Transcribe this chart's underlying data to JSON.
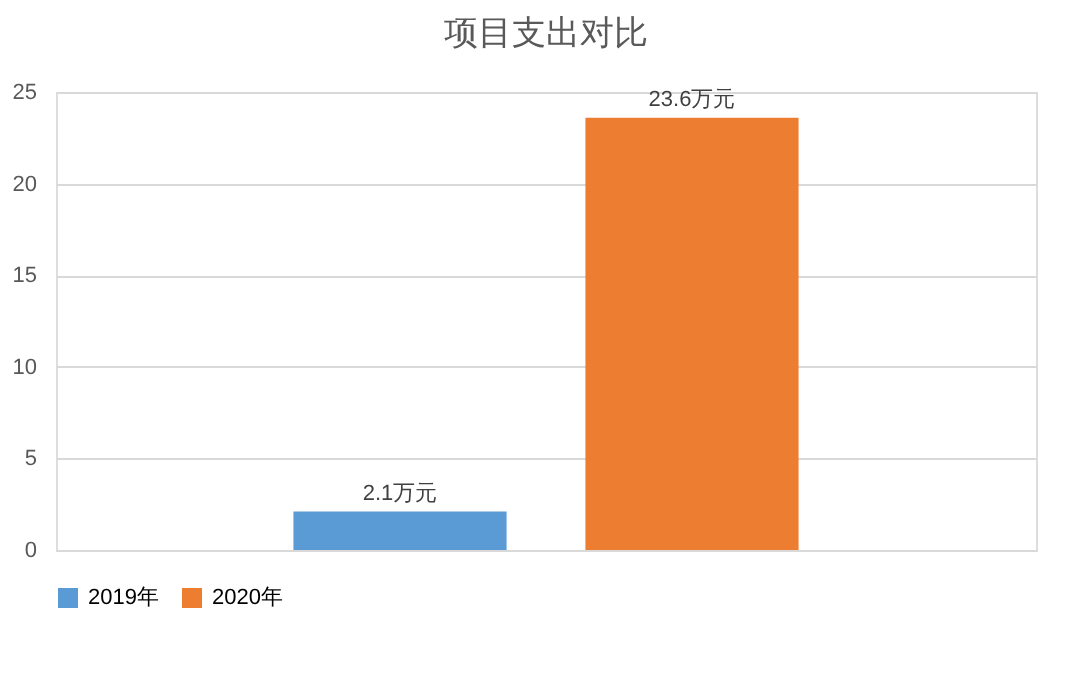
{
  "chart_data": {
    "type": "bar",
    "title": "项目支出对比",
    "categories": [
      null
    ],
    "series": [
      {
        "name": "2019年",
        "color": "#5b9bd5",
        "values": [
          2.1
        ],
        "value_labels": [
          "2.1万元"
        ]
      },
      {
        "name": "2020年",
        "color": "#ed7d31",
        "values": [
          23.6
        ],
        "value_labels": [
          "23.6万元"
        ]
      }
    ],
    "ylim": [
      0,
      25
    ],
    "yticks": [
      0,
      5,
      10,
      15,
      20,
      25
    ],
    "grid": "y",
    "legend": "bottom"
  }
}
